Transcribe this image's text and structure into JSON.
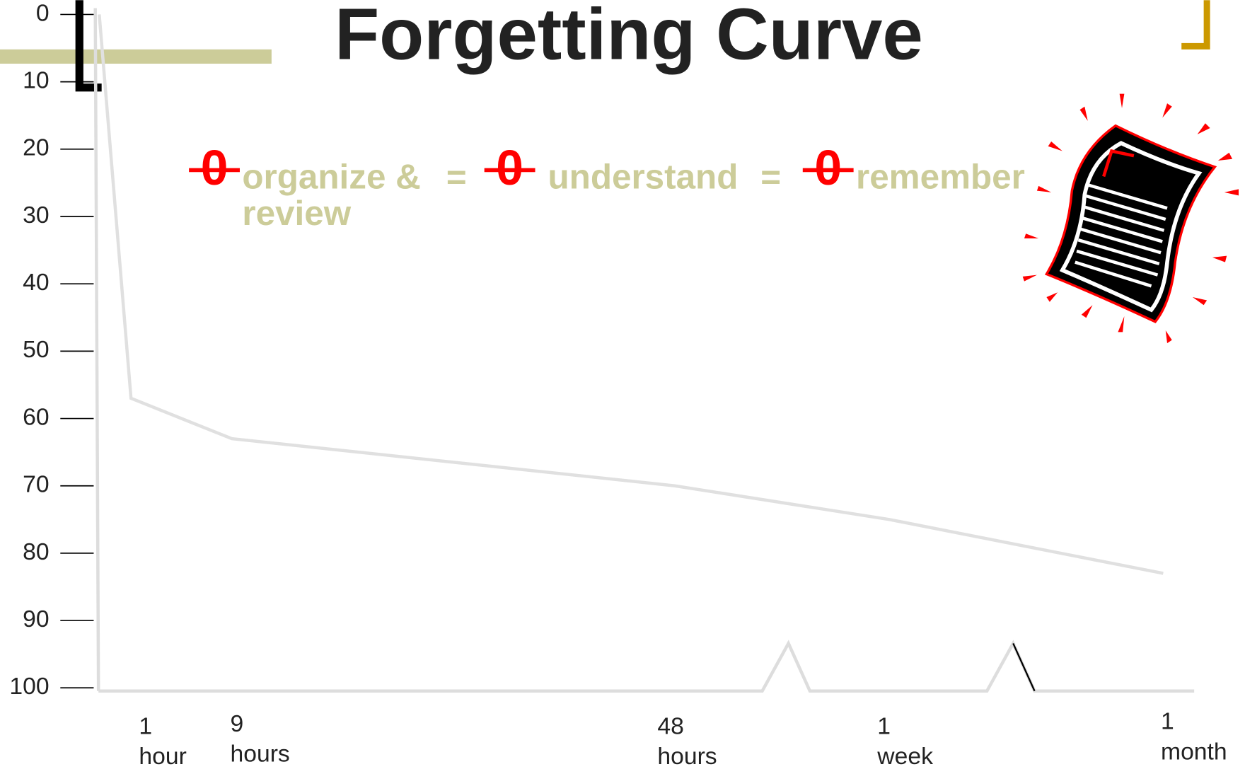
{
  "chart_data": {
    "type": "line",
    "title": "Forgetting Curve",
    "categories": [
      null,
      "1 hour",
      "9 hours",
      "48 hours",
      "1 week",
      "1 month"
    ],
    "series": [
      {
        "color": "#e0e0e0",
        "values": [
          0,
          57,
          63,
          70,
          75,
          83
        ]
      }
    ],
    "ylim": [
      100,
      0
    ],
    "yticks": [
      0,
      10,
      20,
      30,
      40,
      50,
      60,
      70,
      80,
      90,
      100
    ],
    "formula": [
      {
        "symbol": "0",
        "text": "organize & review"
      },
      {
        "symbol": "0",
        "text": "understand"
      },
      {
        "symbol": "0",
        "text": "remember"
      }
    ],
    "equals": "="
  }
}
